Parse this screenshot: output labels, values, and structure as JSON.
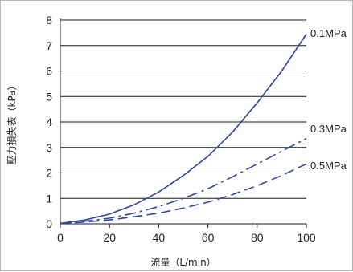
{
  "chart_data": {
    "type": "line",
    "title": "",
    "xlabel": "流量（L/min）",
    "ylabel": "壓力損失表（kPa）",
    "xlim": [
      0,
      100
    ],
    "ylim": [
      0,
      8
    ],
    "x_ticks": [
      0,
      20,
      40,
      60,
      80,
      100
    ],
    "y_ticks": [
      0,
      1,
      2,
      3,
      4,
      5,
      6,
      7,
      8
    ],
    "grid": "horizontal",
    "line_color": "#2f4a9c",
    "series": [
      {
        "name": "0.1MPa",
        "style": "solid",
        "x": [
          0,
          10,
          20,
          30,
          40,
          50,
          60,
          70,
          80,
          90,
          100
        ],
        "y": [
          0.02,
          0.15,
          0.38,
          0.75,
          1.25,
          1.9,
          2.65,
          3.6,
          4.75,
          6.0,
          7.45
        ]
      },
      {
        "name": "0.3MPa",
        "style": "dash-dot",
        "x": [
          0,
          10,
          20,
          30,
          40,
          50,
          60,
          70,
          80,
          90,
          100
        ],
        "y": [
          0.02,
          0.1,
          0.22,
          0.42,
          0.68,
          1.0,
          1.38,
          1.85,
          2.35,
          2.85,
          3.35
        ]
      },
      {
        "name": "0.5MPa",
        "style": "dashed",
        "x": [
          0,
          10,
          20,
          30,
          40,
          50,
          60,
          70,
          80,
          90,
          100
        ],
        "y": [
          0.02,
          0.07,
          0.15,
          0.28,
          0.42,
          0.62,
          0.85,
          1.15,
          1.5,
          1.9,
          2.35
        ]
      }
    ]
  }
}
